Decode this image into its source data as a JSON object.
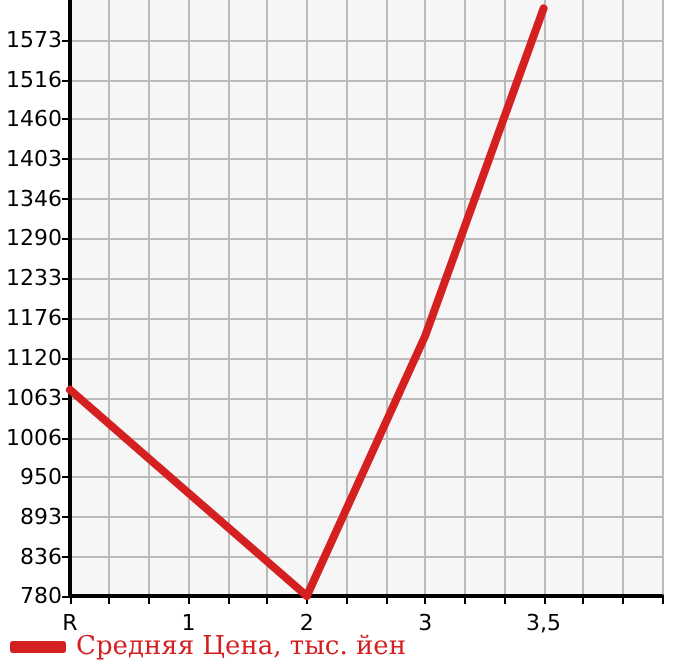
{
  "chart_data": {
    "type": "line",
    "categories": [
      "R",
      "1",
      "2",
      "3",
      "3,5",
      null
    ],
    "series": [
      {
        "name": "Средняя Цена, тыс. йен",
        "color": "#d42020",
        "values": [
          1074,
          927,
          780,
          1151,
          1618,
          null
        ]
      }
    ],
    "ylim": [
      780,
      1630
    ],
    "yticks": [
      780,
      836,
      893,
      950,
      1006,
      1063,
      1120,
      1176,
      1233,
      1290,
      1346,
      1403,
      1460,
      1516,
      1573
    ],
    "grid": true,
    "legend": "bottom left",
    "marker": "none",
    "line_style": "solid"
  }
}
